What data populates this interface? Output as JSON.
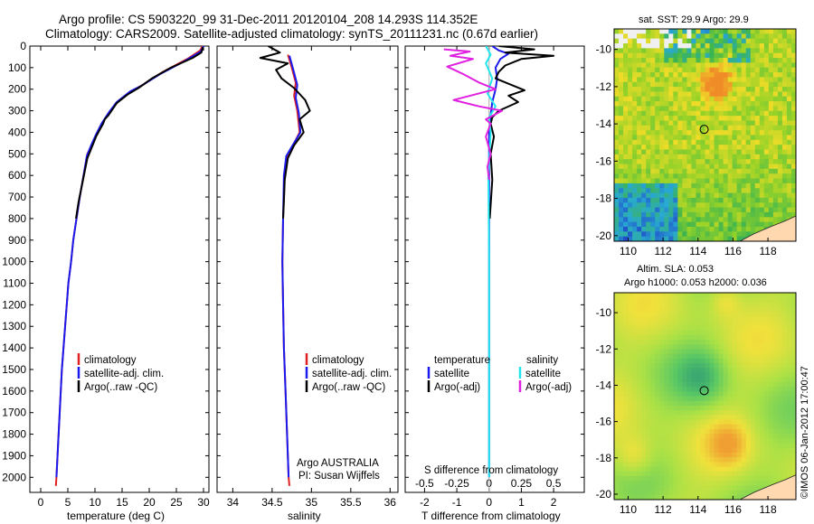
{
  "header": {
    "title_line1": "Argo profile: CS 5903220_99 31-Dec-2011 20120104_208 14.293S 114.352E",
    "title_line2": "Climatology: CARS2009. Satellite-adjusted climatology: synTS_20111231.nc (0.67d earlier)"
  },
  "colors": {
    "climatology": "#e02020",
    "satellite": "#1a1aee",
    "argo": "#000000",
    "satellite_salinity": "#22e6ee",
    "argo_salinity": "#e020e0"
  },
  "chart_data": [
    {
      "type": "line",
      "id": "temperature",
      "xlabel": "temperature (deg C)",
      "xlim": [
        -2,
        31
      ],
      "xticks": [
        0,
        5,
        10,
        15,
        20,
        25,
        30
      ],
      "ylim": [
        0,
        2070
      ],
      "yticks": [
        0,
        100,
        200,
        300,
        400,
        500,
        600,
        700,
        800,
        900,
        1000,
        1100,
        1200,
        1300,
        1400,
        1500,
        1600,
        1700,
        1800,
        1900,
        2000
      ],
      "legend": [
        "climatology",
        "satellite-adj. clim.",
        "Argo(..raw -QC)"
      ],
      "series": [
        {
          "name": "climatology",
          "color": "#e02020",
          "points": [
            [
              29.8,
              0
            ],
            [
              29.4,
              20
            ],
            [
              27,
              60
            ],
            [
              22.5,
              120
            ],
            [
              18.8,
              180
            ],
            [
              17,
              205
            ],
            [
              14.5,
              250
            ],
            [
              12.8,
              300
            ],
            [
              11.5,
              350
            ],
            [
              10.5,
              400
            ],
            [
              9.6,
              450
            ],
            [
              8.6,
              500
            ],
            [
              7.9,
              600
            ],
            [
              7.2,
              700
            ],
            [
              6.6,
              800
            ],
            [
              6.0,
              900
            ],
            [
              5.6,
              1000
            ],
            [
              5.1,
              1100
            ],
            [
              4.8,
              1200
            ],
            [
              4.5,
              1300
            ],
            [
              4.2,
              1400
            ],
            [
              3.9,
              1500
            ],
            [
              3.7,
              1600
            ],
            [
              3.5,
              1700
            ],
            [
              3.3,
              1800
            ],
            [
              3.1,
              1900
            ],
            [
              2.9,
              2000
            ],
            [
              2.8,
              2040
            ]
          ]
        },
        {
          "name": "satellite-adj. clim.",
          "color": "#1a1aee",
          "points": [
            [
              30,
              0
            ],
            [
              29.5,
              25
            ],
            [
              26.5,
              70
            ],
            [
              22,
              130
            ],
            [
              18.5,
              185
            ],
            [
              16.5,
              210
            ],
            [
              14,
              260
            ],
            [
              12.5,
              310
            ],
            [
              11.2,
              360
            ],
            [
              10.2,
              410
            ],
            [
              9.3,
              460
            ],
            [
              8.5,
              510
            ],
            [
              7.9,
              600
            ],
            [
              7.2,
              700
            ],
            [
              6.6,
              800
            ],
            [
              6.0,
              900
            ],
            [
              5.6,
              1000
            ],
            [
              5.1,
              1100
            ],
            [
              4.8,
              1200
            ],
            [
              4.5,
              1300
            ],
            [
              4.2,
              1400
            ],
            [
              3.9,
              1500
            ],
            [
              3.7,
              1600
            ],
            [
              3.5,
              1700
            ],
            [
              3.3,
              1800
            ],
            [
              3.1,
              1900
            ],
            [
              2.9,
              2000
            ]
          ]
        },
        {
          "name": "Argo(..raw -QC)",
          "color": "#000000",
          "points": [
            [
              29.9,
              5
            ],
            [
              29.6,
              30
            ],
            [
              28,
              55
            ],
            [
              24,
              100
            ],
            [
              20.5,
              150
            ],
            [
              18,
              195
            ],
            [
              16,
              225
            ],
            [
              14,
              265
            ],
            [
              12.5,
              320
            ],
            [
              11.8,
              340
            ],
            [
              11.5,
              360
            ],
            [
              10.2,
              420
            ],
            [
              9.4,
              470
            ],
            [
              8.6,
              520
            ],
            [
              7.8,
              620
            ],
            [
              7.0,
              720
            ],
            [
              6.5,
              800
            ]
          ]
        }
      ]
    },
    {
      "type": "line",
      "id": "salinity",
      "xlabel": "salinity",
      "xlim": [
        33.8,
        36.1
      ],
      "xticks": [
        34,
        34.5,
        35,
        35.5,
        36
      ],
      "ylim": [
        0,
        2070
      ],
      "legend": [
        "climatology",
        "satellite-adj. clim.",
        "Argo(..raw -QC)"
      ],
      "annotation": [
        "Argo AUSTRALIA",
        "PI: Susan Wijffels"
      ],
      "series": [
        {
          "name": "climatology",
          "color": "#e02020",
          "points": [
            [
              34.7,
              40
            ],
            [
              34.75,
              100
            ],
            [
              34.8,
              170
            ],
            [
              34.78,
              230
            ],
            [
              34.82,
              300
            ],
            [
              34.85,
              400
            ],
            [
              34.78,
              450
            ],
            [
              34.7,
              500
            ],
            [
              34.66,
              600
            ],
            [
              34.64,
              800
            ],
            [
              34.63,
              1000
            ],
            [
              34.64,
              1200
            ],
            [
              34.65,
              1400
            ],
            [
              34.67,
              1600
            ],
            [
              34.69,
              1800
            ],
            [
              34.71,
              2000
            ],
            [
              34.72,
              2040
            ]
          ]
        },
        {
          "name": "satellite-adj. clim.",
          "color": "#1a1aee",
          "points": [
            [
              34.72,
              45
            ],
            [
              34.77,
              110
            ],
            [
              34.82,
              180
            ],
            [
              34.8,
              240
            ],
            [
              34.84,
              310
            ],
            [
              34.86,
              400
            ],
            [
              34.77,
              455
            ],
            [
              34.68,
              510
            ],
            [
              34.65,
              600
            ],
            [
              34.64,
              800
            ],
            [
              34.63,
              1000
            ],
            [
              34.64,
              1200
            ],
            [
              34.65,
              1400
            ],
            [
              34.67,
              1600
            ],
            [
              34.69,
              1800
            ],
            [
              34.71,
              2000
            ]
          ]
        },
        {
          "name": "Argo(..raw -QC)",
          "color": "#000000",
          "points": [
            [
              34.45,
              0
            ],
            [
              34.6,
              30
            ],
            [
              34.35,
              55
            ],
            [
              34.7,
              80
            ],
            [
              34.55,
              110
            ],
            [
              34.62,
              150
            ],
            [
              34.78,
              195
            ],
            [
              34.92,
              250
            ],
            [
              34.98,
              300
            ],
            [
              34.85,
              340
            ],
            [
              34.9,
              400
            ],
            [
              34.78,
              460
            ],
            [
              34.7,
              520
            ],
            [
              34.66,
              620
            ],
            [
              34.65,
              720
            ],
            [
              34.64,
              800
            ]
          ]
        }
      ]
    },
    {
      "type": "line",
      "id": "difference",
      "xlabel": "T difference from climatology",
      "xlabel_top": "S difference from climatology",
      "xlim": [
        -2.6,
        2.95
      ],
      "xticks": [
        -2,
        -1,
        0,
        1,
        2
      ],
      "top_tick_labels": [
        "-0.5",
        "-0.25",
        "0",
        "0.25",
        "0.5"
      ],
      "ylim": [
        0,
        2070
      ],
      "legend": {
        "temperature_heading": "temperature",
        "salinity_heading": "salinity",
        "items": [
          "satellite",
          "Argo(-adj)",
          "satellite",
          "Argo(-adj)"
        ]
      },
      "series": [
        {
          "name": "temperature satellite",
          "color": "#1a1aee",
          "points": [
            [
              0.1,
              0
            ],
            [
              0.3,
              20
            ],
            [
              0.6,
              35
            ],
            [
              0.35,
              60
            ],
            [
              0.2,
              100
            ],
            [
              0.25,
              150
            ],
            [
              0.2,
              200
            ],
            [
              0.1,
              260
            ],
            [
              0.05,
              320
            ],
            [
              0.0,
              400
            ],
            [
              0.0,
              600
            ],
            [
              0.0,
              1000
            ],
            [
              0.0,
              1400
            ],
            [
              0.0,
              2000
            ]
          ]
        },
        {
          "name": "temperature Argo(-adj)",
          "color": "#000000",
          "points": [
            [
              0.3,
              0
            ],
            [
              1.4,
              15
            ],
            [
              0.5,
              30
            ],
            [
              2.0,
              45
            ],
            [
              1.0,
              60
            ],
            [
              0.5,
              90
            ],
            [
              0.3,
              120
            ],
            [
              0.2,
              150
            ],
            [
              1.1,
              205
            ],
            [
              0.6,
              230
            ],
            [
              0.9,
              260
            ],
            [
              0.3,
              300
            ],
            [
              0.1,
              330
            ],
            [
              0.05,
              360
            ],
            [
              0.15,
              420
            ],
            [
              0.05,
              500
            ],
            [
              0.1,
              620
            ],
            [
              0.02,
              800
            ]
          ]
        },
        {
          "name": "salinity satellite",
          "color": "#22e6ee",
          "points": [
            [
              -0.1,
              0
            ],
            [
              0.05,
              40
            ],
            [
              -0.1,
              80
            ],
            [
              0.1,
              150
            ],
            [
              -0.05,
              220
            ],
            [
              0.2,
              280
            ],
            [
              0.0,
              330
            ],
            [
              0.05,
              400
            ],
            [
              -0.02,
              600
            ],
            [
              0.0,
              1000
            ],
            [
              0.0,
              2000
            ]
          ]
        },
        {
          "name": "salinity Argo(-adj)",
          "color": "#e020e0",
          "points": [
            [
              -1.4,
              15
            ],
            [
              -0.6,
              25
            ],
            [
              -1.2,
              45
            ],
            [
              -0.5,
              60
            ],
            [
              -1.3,
              95
            ],
            [
              -0.8,
              130
            ],
            [
              -0.3,
              170
            ],
            [
              0.2,
              200
            ],
            [
              -1.1,
              250
            ],
            [
              -0.3,
              280
            ],
            [
              0.4,
              300
            ],
            [
              -0.1,
              340
            ],
            [
              0.05,
              360
            ],
            [
              -0.1,
              420
            ],
            [
              0.05,
              500
            ],
            [
              -0.05,
              560
            ],
            [
              0.0,
              620
            ]
          ]
        }
      ]
    },
    {
      "type": "heatmap",
      "id": "sst-map",
      "title": "sat. SST: 29.9 Argo: 29.9",
      "xlim": [
        109.2,
        119.6
      ],
      "ylim": [
        -20.3,
        -8.9
      ],
      "xticks": [
        110,
        112,
        114,
        116,
        118
      ],
      "yticks": [
        -10,
        -12,
        -14,
        -16,
        -18,
        -20
      ],
      "argo_position": [
        114.352,
        -14.293
      ]
    },
    {
      "type": "heatmap",
      "id": "sla-map",
      "title_line1": "Altim. SLA: 0.053",
      "title_line2": "Argo h1000: 0.053 h2000: 0.036",
      "xlim": [
        109.2,
        119.6
      ],
      "ylim": [
        -20.3,
        -8.9
      ],
      "xticks": [
        110,
        112,
        114,
        116,
        118
      ],
      "yticks": [
        -10,
        -12,
        -14,
        -16,
        -18,
        -20
      ],
      "argo_position": [
        114.352,
        -14.293
      ]
    }
  ],
  "credit": "©IMOS 06-Jan-2012 17:00:47"
}
